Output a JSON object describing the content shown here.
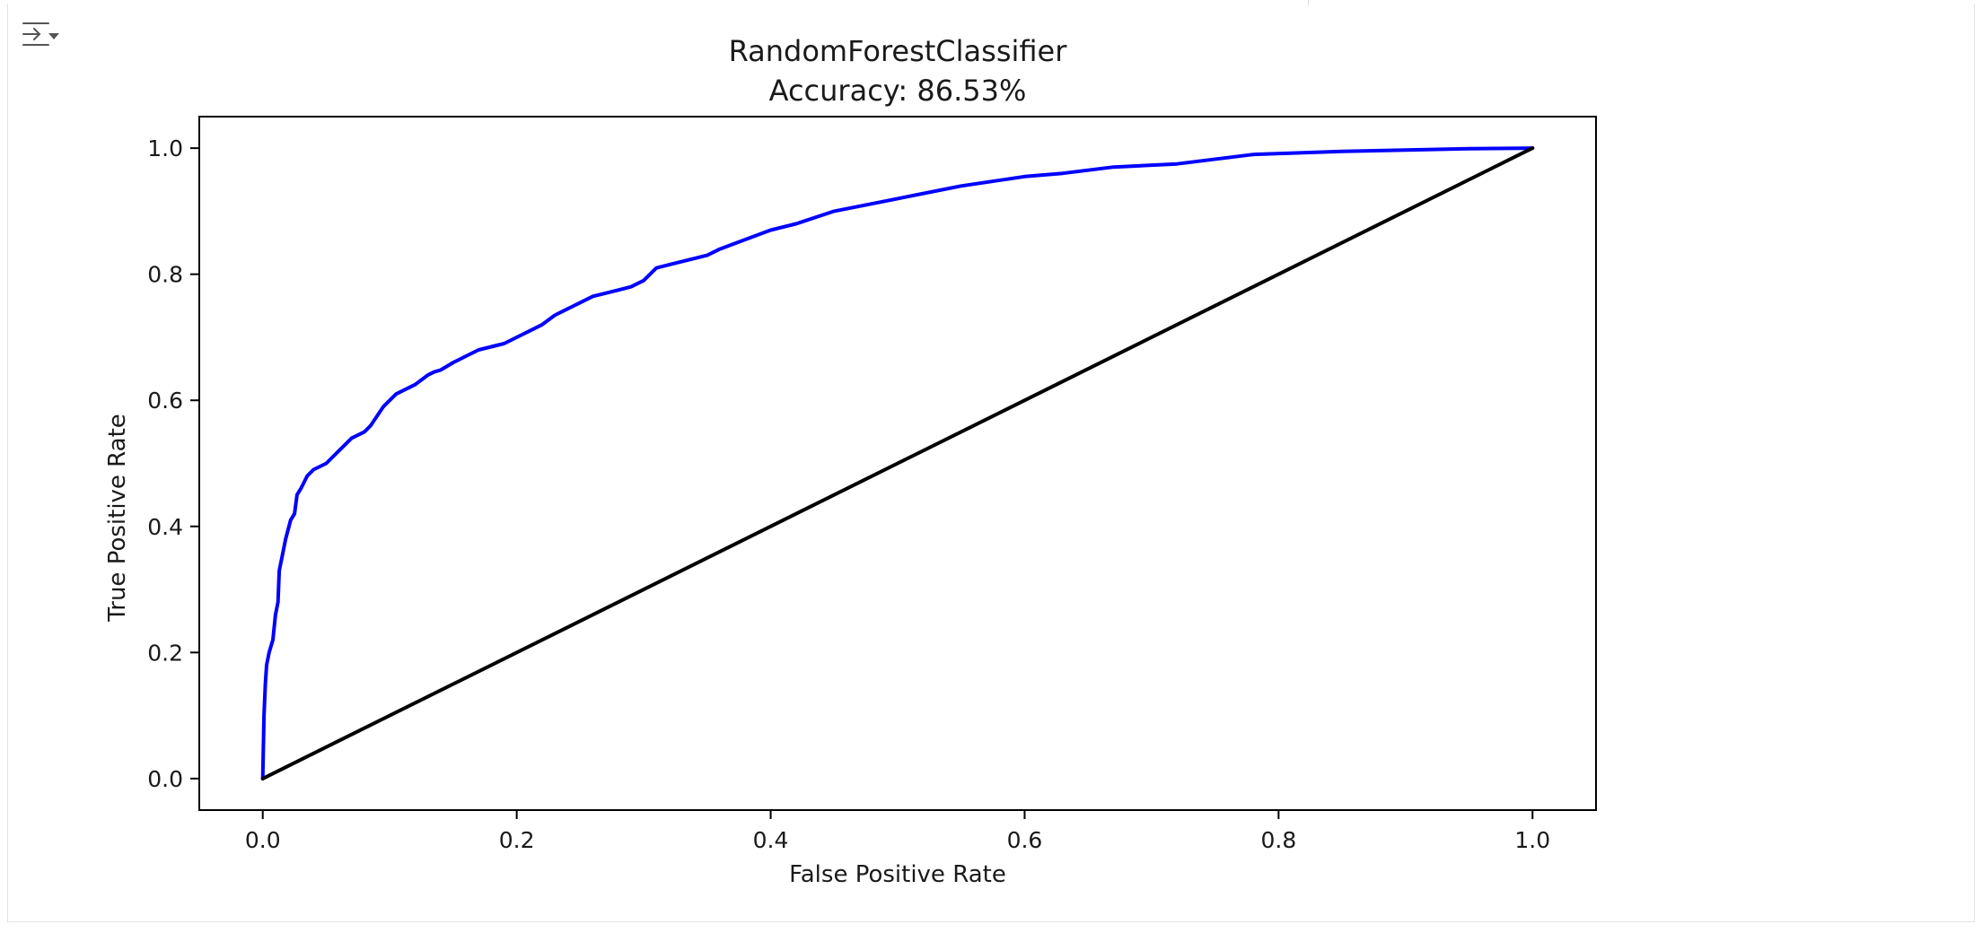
{
  "icons": {
    "output_toggle": "output-collapse-icon"
  },
  "colors": {
    "roc_curve": "#0000ff",
    "chance_line": "#000000",
    "axes": "#000000",
    "text": "#1a1a1a"
  },
  "chart_data": {
    "type": "line",
    "title": "RandomForestClassifier",
    "subtitle": "Accuracy: 86.53%",
    "xlabel": "False Positive Rate",
    "ylabel": "True Positive Rate",
    "xlim": [
      -0.05,
      1.05
    ],
    "ylim": [
      -0.05,
      1.05
    ],
    "xticks": [
      0.0,
      0.2,
      0.4,
      0.6,
      0.8,
      1.0
    ],
    "xtick_labels": [
      "0.0",
      "0.2",
      "0.4",
      "0.6",
      "0.8",
      "1.0"
    ],
    "yticks": [
      0.0,
      0.2,
      0.4,
      0.6,
      0.8,
      1.0
    ],
    "ytick_labels": [
      "0.0",
      "0.2",
      "0.4",
      "0.6",
      "0.8",
      "1.0"
    ],
    "grid": false,
    "series": [
      {
        "color": "#0000ff",
        "x": [
          0.0,
          0.001,
          0.002,
          0.003,
          0.005,
          0.008,
          0.01,
          0.012,
          0.013,
          0.016,
          0.018,
          0.022,
          0.025,
          0.027,
          0.03,
          0.035,
          0.04,
          0.045,
          0.05,
          0.055,
          0.06,
          0.065,
          0.07,
          0.075,
          0.08,
          0.085,
          0.09,
          0.095,
          0.1,
          0.105,
          0.11,
          0.12,
          0.13,
          0.135,
          0.14,
          0.15,
          0.16,
          0.17,
          0.18,
          0.19,
          0.2,
          0.21,
          0.22,
          0.23,
          0.24,
          0.25,
          0.26,
          0.27,
          0.28,
          0.29,
          0.3,
          0.31,
          0.32,
          0.33,
          0.34,
          0.35,
          0.36,
          0.38,
          0.4,
          0.42,
          0.45,
          0.5,
          0.55,
          0.6,
          0.63,
          0.67,
          0.72,
          0.78,
          0.85,
          0.9,
          0.95,
          1.0
        ],
        "y": [
          0.0,
          0.1,
          0.15,
          0.18,
          0.2,
          0.22,
          0.26,
          0.28,
          0.33,
          0.36,
          0.38,
          0.41,
          0.42,
          0.45,
          0.46,
          0.48,
          0.49,
          0.495,
          0.5,
          0.51,
          0.52,
          0.53,
          0.54,
          0.545,
          0.55,
          0.56,
          0.575,
          0.59,
          0.6,
          0.61,
          0.615,
          0.625,
          0.64,
          0.645,
          0.648,
          0.66,
          0.67,
          0.68,
          0.685,
          0.69,
          0.7,
          0.71,
          0.72,
          0.735,
          0.745,
          0.755,
          0.765,
          0.77,
          0.775,
          0.78,
          0.79,
          0.81,
          0.815,
          0.82,
          0.825,
          0.83,
          0.84,
          0.855,
          0.87,
          0.88,
          0.9,
          0.92,
          0.94,
          0.955,
          0.96,
          0.97,
          0.975,
          0.99,
          0.995,
          0.997,
          0.999,
          1.0
        ]
      },
      {
        "color": "#000000",
        "x": [
          0.0,
          1.0
        ],
        "y": [
          0.0,
          1.0
        ]
      }
    ]
  }
}
